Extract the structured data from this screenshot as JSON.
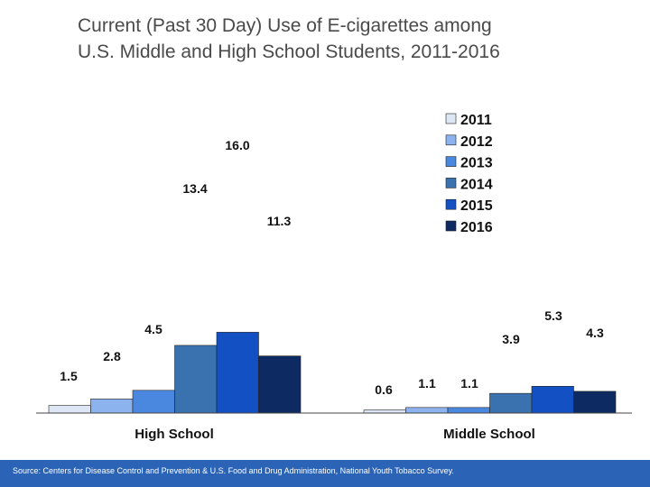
{
  "chart_data": {
    "type": "bar",
    "title": [
      "Current (Past 30 Day) Use of E-cigarettes among",
      "U.S.  Middle and High School Students, 2011-2016"
    ],
    "categories": [
      "High School",
      "Middle School"
    ],
    "series": [
      {
        "name": "2011",
        "values": [
          1.5,
          0.6
        ],
        "labels": [
          "1.5",
          "0.6"
        ],
        "color": "#dce6f4"
      },
      {
        "name": "2012",
        "values": [
          2.8,
          1.1
        ],
        "labels": [
          "2.8",
          "1.1"
        ],
        "color": "#8db3ee"
      },
      {
        "name": "2013",
        "values": [
          4.5,
          1.1
        ],
        "labels": [
          "4.5",
          "1.1"
        ],
        "color": "#4a88e0"
      },
      {
        "name": "2014",
        "values": [
          13.4,
          3.9
        ],
        "labels": [
          "13.4",
          "3.9"
        ],
        "color": "#3a72b0"
      },
      {
        "name": "2015",
        "values": [
          16.0,
          5.3
        ],
        "labels": [
          "16.0",
          "5.3"
        ],
        "color": "#1350c4"
      },
      {
        "name": "2016",
        "values": [
          11.3,
          4.3
        ],
        "labels": [
          "11.3",
          "4.3"
        ],
        "color": "#0d2a63"
      }
    ],
    "xlabel": "",
    "ylabel": "",
    "ylim": [
      0,
      17.5
    ],
    "grid": false,
    "legend": "top-right",
    "source": "Source: Centers for Disease Control and Prevention & U.S. Food and Drug Administration, National Youth Tobacco Survey."
  }
}
